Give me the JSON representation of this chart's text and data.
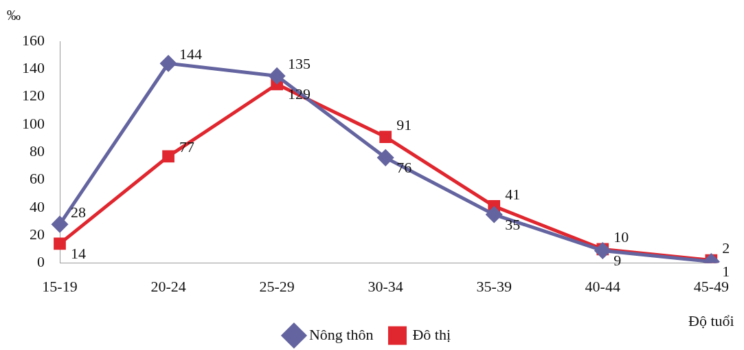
{
  "chart_data": {
    "type": "line",
    "xlabel": "Độ tuổi",
    "ylabel": "‰",
    "categories": [
      "15-19",
      "20-24",
      "25-29",
      "30-34",
      "35-39",
      "40-44",
      "45-49"
    ],
    "series": [
      {
        "name": "Nông thôn",
        "color": "#6464a0",
        "marker": "diamond",
        "values": [
          28,
          144,
          135,
          76,
          35,
          9,
          1
        ]
      },
      {
        "name": "Đô thị",
        "color": "#e0262e",
        "marker": "square",
        "values": [
          14,
          77,
          129,
          91,
          41,
          10,
          2
        ]
      }
    ],
    "ylim": [
      0,
      160
    ],
    "yticks": [
      0,
      20,
      40,
      60,
      80,
      100,
      120,
      140,
      160
    ],
    "grid": false,
    "legend": "bottom",
    "data_labels": true
  }
}
